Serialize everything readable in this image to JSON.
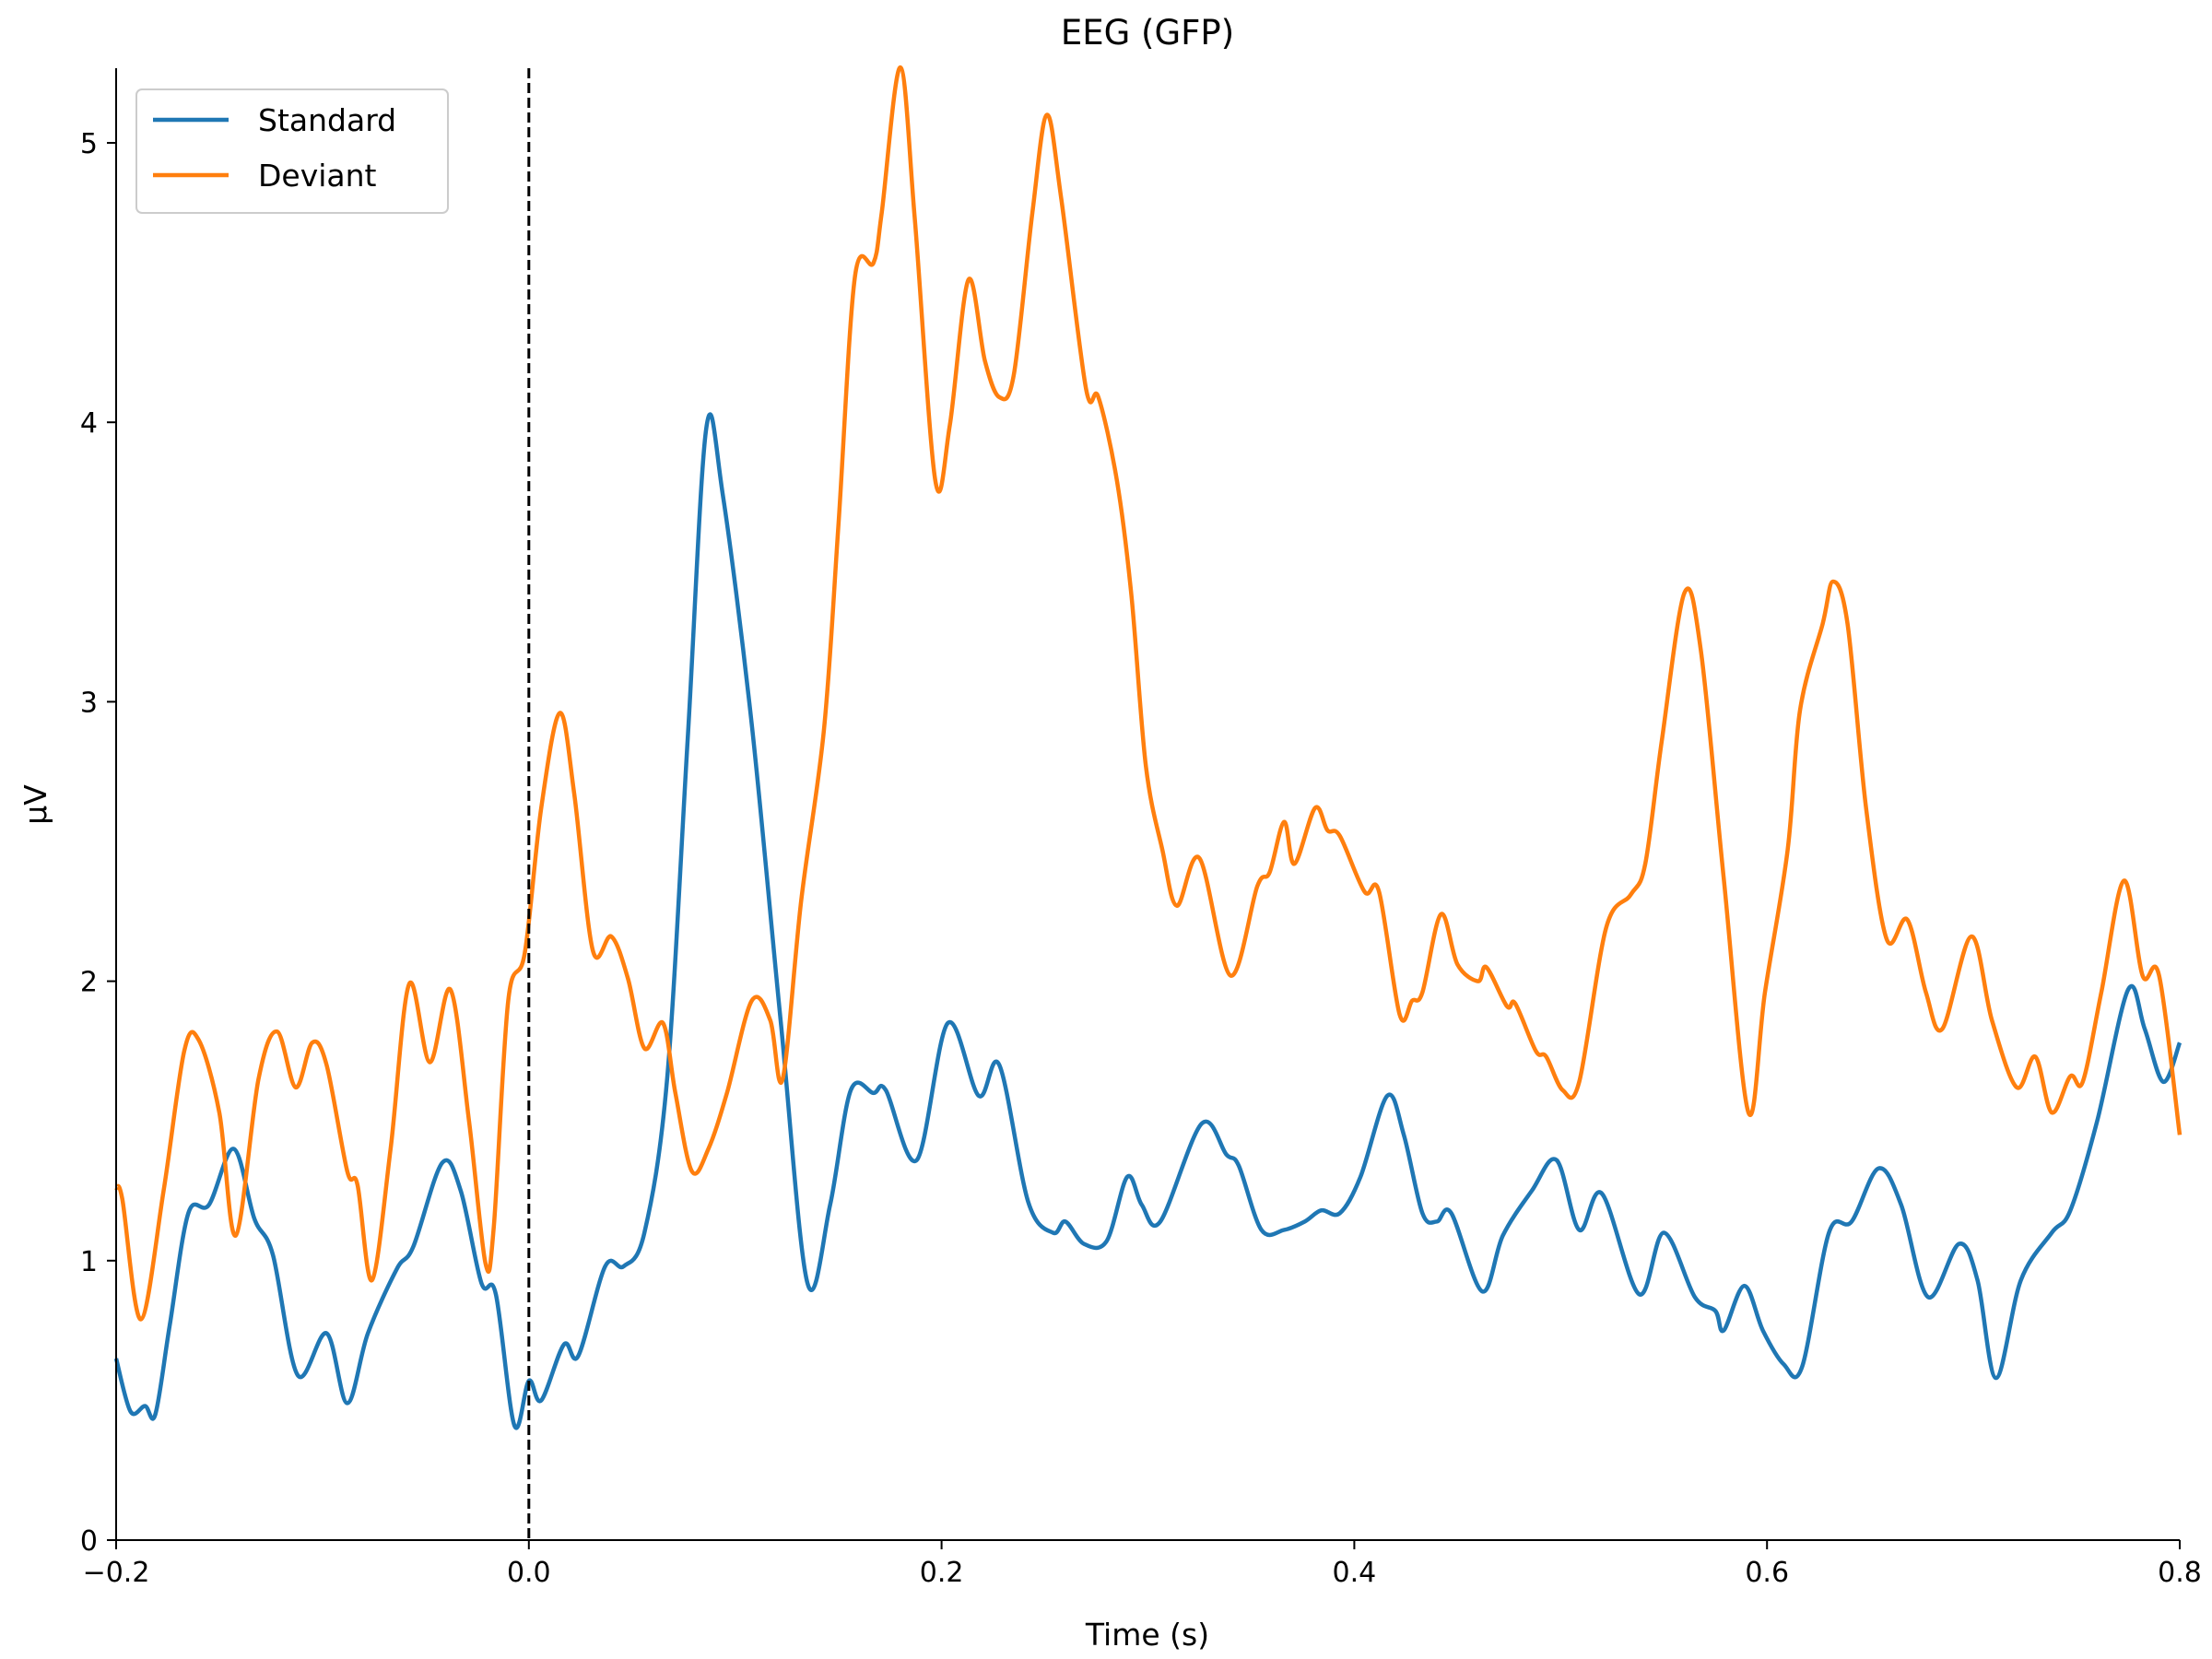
{
  "chart_data": {
    "type": "line",
    "title": "EEG (GFP)",
    "xlabel": "Time (s)",
    "ylabel": "µV",
    "xlim": [
      -0.2,
      0.8
    ],
    "ylim": [
      0,
      5.27
    ],
    "xticks": [
      -0.2,
      0.0,
      0.2,
      0.4,
      0.6,
      0.8
    ],
    "xtick_labels": [
      "−0.2",
      "0.0",
      "0.2",
      "0.4",
      "0.6",
      "0.8"
    ],
    "yticks": [
      0,
      1,
      2,
      3,
      4,
      5
    ],
    "ytick_labels": [
      "0",
      "1",
      "2",
      "3",
      "4",
      "5"
    ],
    "grid": false,
    "legend_position": "top-left",
    "event_marker": {
      "x": 0.0,
      "style": "dashed",
      "color": "#000000"
    },
    "series": [
      {
        "name": "Standard",
        "color": "#1f77b4",
        "x": [
          -0.2,
          -0.193,
          -0.186,
          -0.181,
          -0.174,
          -0.165,
          -0.155,
          -0.143,
          -0.133,
          -0.124,
          -0.112,
          -0.098,
          -0.088,
          -0.078,
          -0.064,
          -0.056,
          -0.042,
          -0.033,
          -0.023,
          -0.016,
          -0.007,
          0.0,
          0.006,
          0.017,
          0.024,
          0.037,
          0.046,
          0.056,
          0.067,
          0.077,
          0.086,
          0.094,
          0.108,
          0.122,
          0.135,
          0.146,
          0.156,
          0.167,
          0.173,
          0.188,
          0.203,
          0.218,
          0.228,
          0.242,
          0.254,
          0.26,
          0.269,
          0.28,
          0.29,
          0.297,
          0.306,
          0.326,
          0.338,
          0.344,
          0.355,
          0.366,
          0.376,
          0.384,
          0.393,
          0.403,
          0.416,
          0.424,
          0.433,
          0.44,
          0.447,
          0.462,
          0.472,
          0.486,
          0.498,
          0.509,
          0.52,
          0.538,
          0.55,
          0.565,
          0.575,
          0.579,
          0.589,
          0.598,
          0.608,
          0.617,
          0.63,
          0.641,
          0.654,
          0.665,
          0.678,
          0.693,
          0.702,
          0.711,
          0.723,
          0.738,
          0.747,
          0.76,
          0.775,
          0.783,
          0.792,
          0.8
        ],
        "y": [
          0.65,
          0.46,
          0.48,
          0.45,
          0.77,
          1.17,
          1.2,
          1.4,
          1.15,
          1.02,
          0.59,
          0.74,
          0.49,
          0.74,
          0.97,
          1.05,
          1.35,
          1.25,
          0.92,
          0.88,
          0.41,
          0.57,
          0.5,
          0.7,
          0.66,
          0.98,
          0.98,
          1.1,
          1.65,
          2.87,
          3.98,
          3.74,
          2.92,
          1.86,
          0.92,
          1.2,
          1.61,
          1.6,
          1.61,
          1.36,
          1.85,
          1.59,
          1.7,
          1.21,
          1.1,
          1.14,
          1.06,
          1.07,
          1.3,
          1.2,
          1.14,
          1.49,
          1.38,
          1.34,
          1.11,
          1.11,
          1.14,
          1.18,
          1.17,
          1.3,
          1.59,
          1.45,
          1.17,
          1.14,
          1.17,
          0.89,
          1.09,
          1.25,
          1.36,
          1.11,
          1.24,
          0.88,
          1.1,
          0.87,
          0.82,
          0.75,
          0.91,
          0.75,
          0.63,
          0.62,
          1.1,
          1.14,
          1.33,
          1.2,
          0.87,
          1.06,
          0.93,
          0.58,
          0.93,
          1.1,
          1.18,
          1.5,
          1.97,
          1.83,
          1.64,
          1.78
        ]
      },
      {
        "name": "Deviant",
        "color": "#ff7f0e",
        "x": [
          -0.2,
          -0.197,
          -0.188,
          -0.177,
          -0.167,
          -0.16,
          -0.15,
          -0.142,
          -0.131,
          -0.122,
          -0.113,
          -0.105,
          -0.098,
          -0.088,
          -0.083,
          -0.076,
          -0.067,
          -0.058,
          -0.048,
          -0.038,
          -0.029,
          -0.021,
          -0.017,
          -0.01,
          -0.002,
          0.006,
          0.015,
          0.022,
          0.031,
          0.04,
          0.048,
          0.056,
          0.065,
          0.071,
          0.079,
          0.087,
          0.096,
          0.108,
          0.117,
          0.123,
          0.132,
          0.143,
          0.15,
          0.158,
          0.167,
          0.171,
          0.18,
          0.187,
          0.197,
          0.204,
          0.213,
          0.221,
          0.228,
          0.235,
          0.244,
          0.251,
          0.258,
          0.27,
          0.276,
          0.285,
          0.292,
          0.299,
          0.307,
          0.314,
          0.325,
          0.34,
          0.353,
          0.359,
          0.366,
          0.371,
          0.381,
          0.387,
          0.393,
          0.405,
          0.412,
          0.422,
          0.428,
          0.433,
          0.442,
          0.45,
          0.46,
          0.464,
          0.474,
          0.478,
          0.488,
          0.493,
          0.501,
          0.509,
          0.522,
          0.534,
          0.541,
          0.549,
          0.56,
          0.568,
          0.579,
          0.591,
          0.599,
          0.61,
          0.616,
          0.627,
          0.632,
          0.639,
          0.648,
          0.658,
          0.668,
          0.677,
          0.685,
          0.699,
          0.709,
          0.721,
          0.73,
          0.738,
          0.747,
          0.753,
          0.762,
          0.773,
          0.782,
          0.79,
          0.8
        ],
        "y": [
          1.26,
          1.22,
          0.79,
          1.25,
          1.75,
          1.79,
          1.53,
          1.09,
          1.65,
          1.82,
          1.62,
          1.78,
          1.7,
          1.32,
          1.27,
          0.93,
          1.4,
          1.99,
          1.71,
          1.97,
          1.5,
          0.99,
          1.12,
          1.93,
          2.1,
          2.62,
          2.96,
          2.67,
          2.11,
          2.16,
          2.01,
          1.76,
          1.85,
          1.6,
          1.32,
          1.4,
          1.6,
          1.93,
          1.86,
          1.65,
          2.29,
          2.9,
          3.63,
          4.52,
          4.57,
          4.75,
          5.27,
          4.73,
          3.79,
          3.99,
          4.51,
          4.22,
          4.09,
          4.17,
          4.75,
          5.1,
          4.8,
          4.12,
          4.09,
          3.79,
          3.38,
          2.77,
          2.47,
          2.27,
          2.44,
          2.02,
          2.34,
          2.39,
          2.57,
          2.42,
          2.62,
          2.54,
          2.52,
          2.32,
          2.32,
          1.88,
          1.93,
          1.96,
          2.24,
          2.06,
          2.0,
          2.05,
          1.91,
          1.92,
          1.75,
          1.73,
          1.61,
          1.64,
          2.19,
          2.31,
          2.42,
          2.86,
          3.39,
          3.18,
          2.37,
          1.53,
          1.96,
          2.47,
          2.97,
          3.28,
          3.43,
          3.28,
          2.62,
          2.15,
          2.22,
          1.96,
          1.83,
          2.16,
          1.86,
          1.62,
          1.73,
          1.53,
          1.66,
          1.64,
          1.96,
          2.36,
          2.02,
          2.02,
          1.45
        ]
      }
    ]
  }
}
